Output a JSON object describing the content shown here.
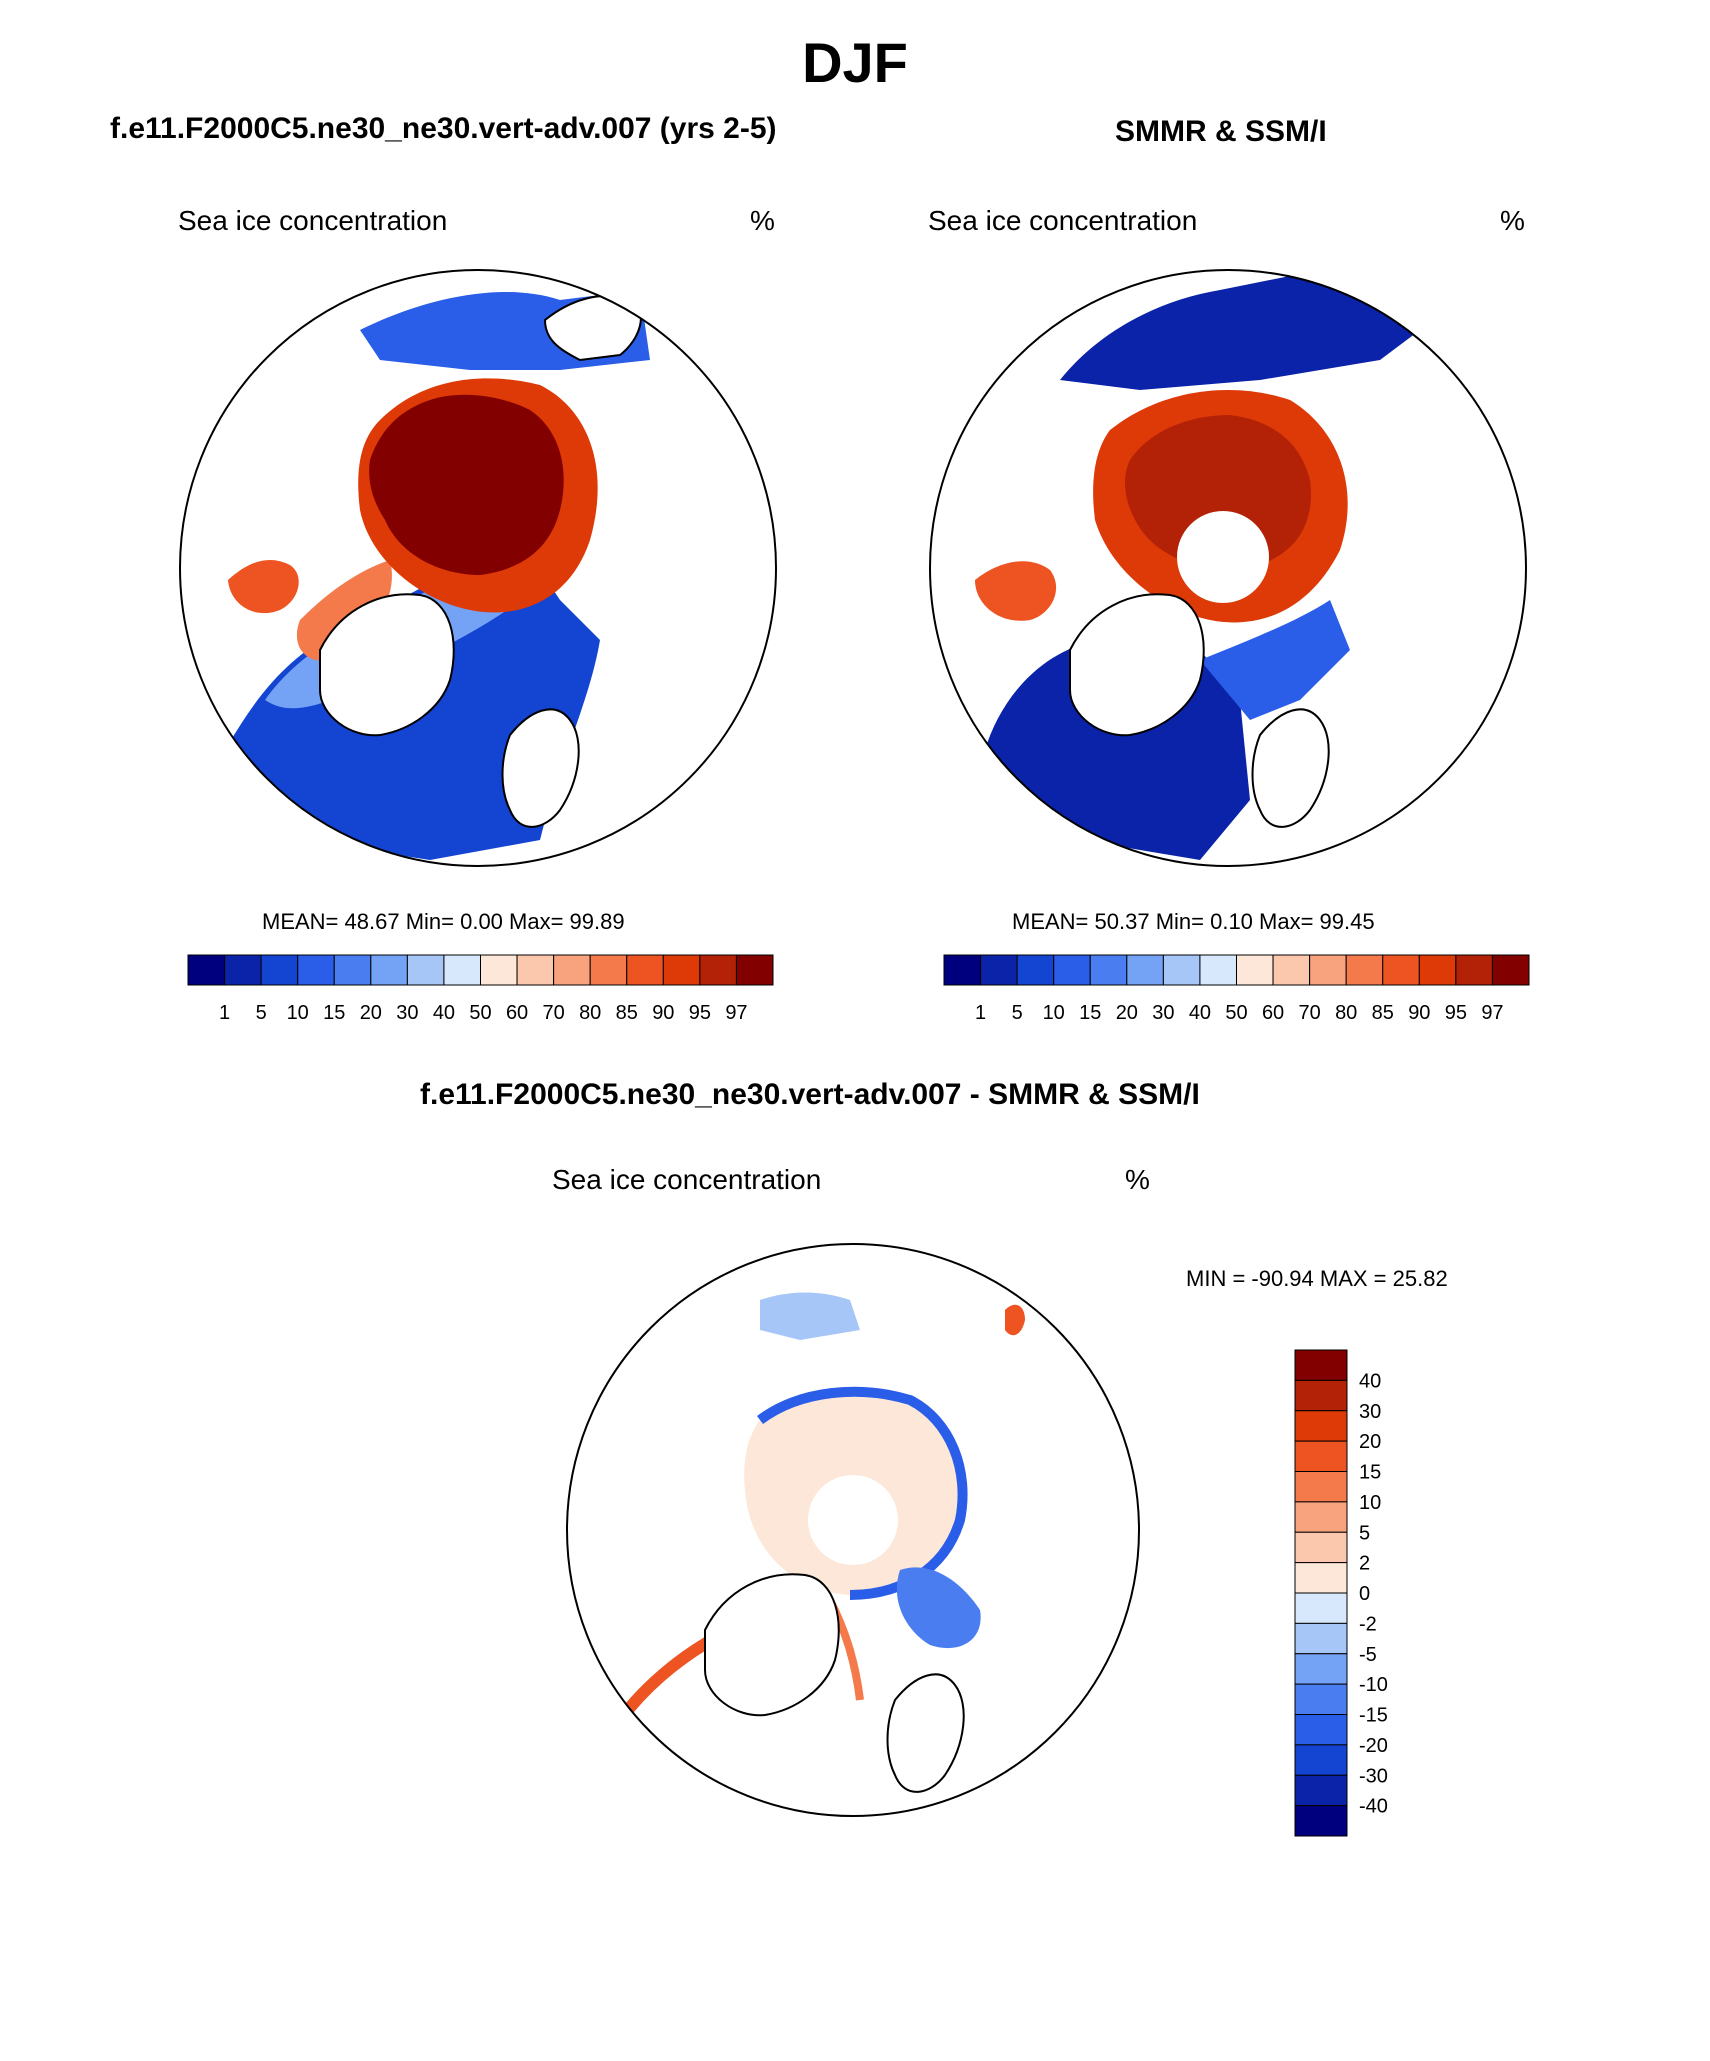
{
  "figure_title": "DJF",
  "panels": [
    {
      "title": "f.e11.F2000C5.ne30_ne30.vert-adv.007 (yrs 2-5)",
      "variable": "Sea ice concentration",
      "units": "%",
      "stats": "MEAN=  48.67  Min=   0.00  Max=  99.89"
    },
    {
      "title": "SMMR & SSM/I",
      "variable": "Sea ice concentration",
      "units": "%",
      "stats": "MEAN=  50.37  Min=   0.10  Max=  99.45"
    },
    {
      "title": "f.e11.F2000C5.ne30_ne30.vert-adv.007 - SMMR & SSM/I",
      "variable": "Sea ice concentration",
      "units": "%",
      "stats": "MIN = -90.94 MAX =  25.82"
    }
  ],
  "chart_data": [
    {
      "type": "heatmap",
      "projection": "north polar stereographic",
      "title": "f.e11.F2000C5.ne30_ne30.vert-adv.007 (yrs 2-5)",
      "variable": "Sea ice concentration",
      "units": "%",
      "mean": 48.67,
      "min": 0.0,
      "max": 99.89,
      "colorbar_levels": [
        "1",
        "5",
        "10",
        "15",
        "20",
        "30",
        "40",
        "50",
        "60",
        "70",
        "80",
        "85",
        "90",
        "95",
        "97"
      ]
    },
    {
      "type": "heatmap",
      "projection": "north polar stereographic",
      "title": "SMMR & SSM/I",
      "variable": "Sea ice concentration",
      "units": "%",
      "mean": 50.37,
      "min": 0.1,
      "max": 99.45,
      "colorbar_levels": [
        "1",
        "5",
        "10",
        "15",
        "20",
        "30",
        "40",
        "50",
        "60",
        "70",
        "80",
        "85",
        "90",
        "95",
        "97"
      ]
    },
    {
      "type": "heatmap",
      "projection": "north polar stereographic",
      "title": "f.e11.F2000C5.ne30_ne30.vert-adv.007 - SMMR & SSM/I",
      "variable": "Sea ice concentration",
      "units": "%",
      "min": -90.94,
      "max": 25.82,
      "colorbar_levels": [
        "40",
        "30",
        "20",
        "15",
        "10",
        "5",
        "2",
        "0",
        "-2",
        "-5",
        "-10",
        "-15",
        "-20",
        "-30",
        "-40"
      ]
    }
  ],
  "colors": {
    "abs_scale": [
      "#00007f",
      "#0a23a8",
      "#1444d2",
      "#2a5de8",
      "#4a7ef0",
      "#74a2f4",
      "#a7c6f8",
      "#d8e8fc",
      "#fde7d8",
      "#fbc8ad",
      "#f8a37d",
      "#f47a4b",
      "#ee5422",
      "#de3a08",
      "#b32206",
      "#820000"
    ],
    "diff_scale": [
      "#820000",
      "#b32206",
      "#de3a08",
      "#ee5422",
      "#f47a4b",
      "#f8a37d",
      "#fbc8ad",
      "#fde7d8",
      "#d8e8fc",
      "#a7c6f8",
      "#74a2f4",
      "#4a7ef0",
      "#2a5de8",
      "#1444d2",
      "#0a23a8",
      "#00007f"
    ]
  }
}
